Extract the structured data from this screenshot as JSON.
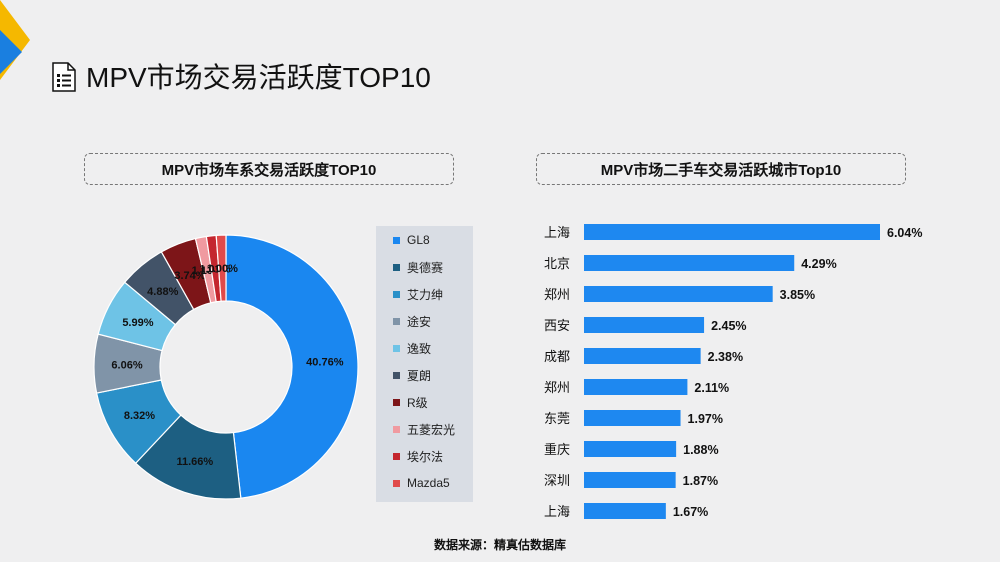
{
  "header": {
    "title": "MPV市场交易活跃度TOP10",
    "icon": "document-list-icon"
  },
  "colors": {
    "accent_yellow": "#f5b800",
    "accent_blue": "#1a7fe0",
    "bar_blue": "#1e88f0"
  },
  "source_note": "数据来源：精真估数据库",
  "chart_data": [
    {
      "type": "pie",
      "title": "MPV市场车系交易活跃度TOP10",
      "categories": [
        "GL8",
        "奥德赛",
        "艾力绅",
        "途安",
        "逸致",
        "夏朗",
        "R级",
        "五菱宏光",
        "埃尔法",
        "Mazda5"
      ],
      "values": [
        40.76,
        11.66,
        8.32,
        6.06,
        5.99,
        4.88,
        3.74,
        1.13,
        1.01,
        1.0
      ],
      "labels": [
        "40.76%",
        "11.66%",
        "8.32%",
        "6.06%",
        "5.99%",
        "4.88%",
        "3.74%",
        "1.13%",
        "1.01%",
        "1.00%"
      ],
      "colors": [
        "#1a87f0",
        "#1d5f82",
        "#2a90c8",
        "#8094a8",
        "#6ec3e6",
        "#425368",
        "#7d1518",
        "#f09aa0",
        "#c4262e",
        "#e04a4a"
      ],
      "legend_position": "right"
    },
    {
      "type": "bar",
      "orientation": "horizontal",
      "title": "MPV市场二手车交易活跃城市Top10",
      "categories": [
        "上海",
        "北京",
        "郑州",
        "西安",
        "成都",
        "郑州",
        "东莞",
        "重庆",
        "深圳",
        "上海"
      ],
      "values": [
        6.04,
        4.29,
        3.85,
        2.45,
        2.38,
        2.11,
        1.97,
        1.88,
        1.87,
        1.67
      ],
      "labels": [
        "6.04%",
        "4.29%",
        "3.85%",
        "2.45%",
        "2.38%",
        "2.11%",
        "1.97%",
        "1.88%",
        "1.87%",
        "1.67%"
      ],
      "xlim": [
        0,
        6.6
      ]
    }
  ]
}
